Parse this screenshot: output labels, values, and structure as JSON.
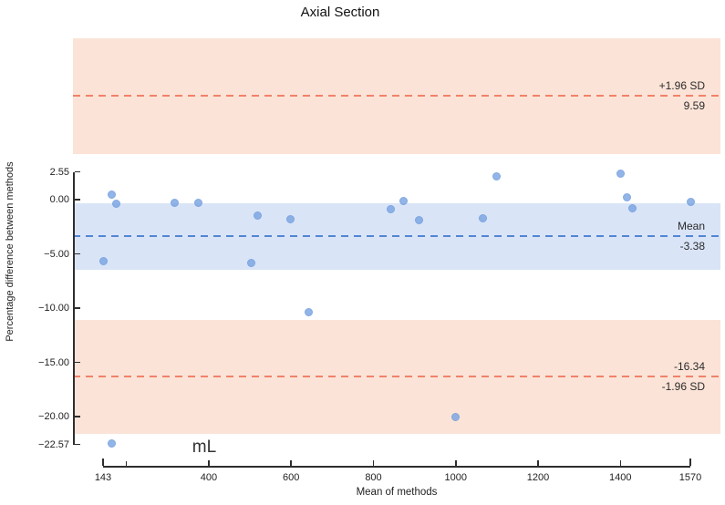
{
  "chart_data": {
    "type": "scatter",
    "title": "Axial Section",
    "xlabel": "Mean of methods",
    "ylabel": "Percentage difference between methods",
    "unit_annotation": "mL",
    "xlim": [
      143,
      1570
    ],
    "ylim": [
      -22.57,
      2.55
    ],
    "grid": false,
    "x_tick_values": [
      143,
      400,
      600,
      800,
      1000,
      1200,
      1400,
      1570
    ],
    "x_tick_labels": [
      "143",
      "400",
      "600",
      "800",
      "1000",
      "1200",
      "1400",
      "1570"
    ],
    "x_minor_tick_values": [
      200
    ],
    "y_tick_values": [
      2.55,
      0,
      -5,
      -10,
      -15,
      -20,
      -22.57
    ],
    "y_tick_labels": [
      "2.55",
      "0.00",
      "−5.00",
      "−10.00",
      "−15.00",
      "−20.00",
      "−22.57"
    ],
    "points": [
      [
        165,
        0.5
      ],
      [
        176,
        -0.4
      ],
      [
        316,
        -0.3
      ],
      [
        374,
        -0.3
      ],
      [
        518,
        -1.5
      ],
      [
        598,
        -1.8
      ],
      [
        145,
        -5.7
      ],
      [
        504,
        -5.85
      ],
      [
        841,
        -0.85
      ],
      [
        873,
        -0.15
      ],
      [
        910,
        -1.85
      ],
      [
        1065,
        -1.7
      ],
      [
        1100,
        2.15
      ],
      [
        1400,
        2.4
      ],
      [
        1415,
        0.25
      ],
      [
        1429,
        -0.8
      ],
      [
        1570,
        -0.25
      ],
      [
        642,
        -10.4
      ],
      [
        1000,
        -20.0
      ],
      [
        163,
        -22.5
      ]
    ],
    "reference_lines": [
      {
        "id": "upper-loa",
        "value": 9.59,
        "label_above": "+1.96 SD",
        "label_below": "9.59",
        "band": [
          4.2,
          14.85
        ],
        "line_color": "#f0826a",
        "band_color": "#fbe3d7"
      },
      {
        "id": "mean",
        "value": -3.38,
        "label_above": "Mean",
        "label_below": "-3.38",
        "band": [
          -6.5,
          -0.35
        ],
        "line_color": "#5186d2",
        "band_color": "#d9e4f7"
      },
      {
        "id": "lower-loa",
        "value": -16.34,
        "label_above": "-16.34",
        "label_below": "-1.96 SD",
        "band": [
          -21.6,
          -11.1
        ],
        "line_color": "#f0826a",
        "band_color": "#fbe3d7"
      }
    ]
  },
  "colors": {
    "background": "#ffffff",
    "point_fill": "#7fa8e2",
    "point_edge": "#6c9bdd",
    "axis": "#2e2e2e",
    "text": "#1c1c1c"
  }
}
